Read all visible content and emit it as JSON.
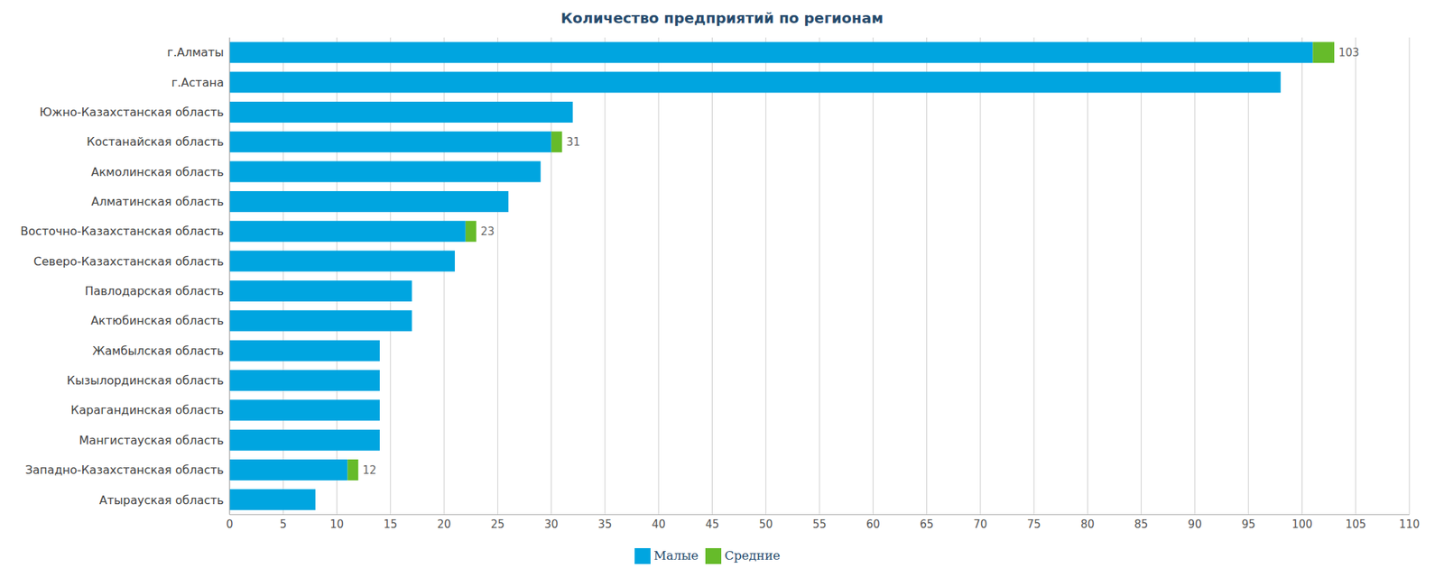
{
  "chart_data": {
    "type": "bar",
    "title": "Количество предприятий по регионам",
    "orientation": "horizontal",
    "stacked": true,
    "grid": true,
    "legend": "bottom",
    "categories": [
      "г.Алматы",
      "г.Астана",
      "Южно-Казахстанская область",
      "Костанайская область",
      "Акмолинская область",
      "Алматинская область",
      "Восточно-Казахстанская область",
      "Северо-Казахстанская область",
      "Павлодарская область",
      "Актюбинская область",
      "Жамбылская область",
      "Кызылординская область",
      "Карагандинская область",
      "Мангистауская область",
      "Западно-Казахстанская область",
      "Атырауская область"
    ],
    "series": [
      {
        "name": "Малые",
        "color": "#00a5e0",
        "values": [
          101,
          98,
          32,
          30,
          29,
          26,
          22,
          21,
          17,
          17,
          14,
          14,
          14,
          14,
          11,
          8
        ]
      },
      {
        "name": "Средние",
        "color": "#66bb2a",
        "values": [
          2,
          0,
          0,
          1,
          0,
          0,
          1,
          0,
          0,
          0,
          0,
          0,
          0,
          0,
          1,
          0
        ]
      }
    ],
    "totals": [
      103,
      98,
      32,
      31,
      29,
      26,
      23,
      21,
      17,
      17,
      14,
      14,
      14,
      14,
      12,
      8
    ],
    "xlim": [
      0,
      110
    ],
    "xticks": [
      0,
      5,
      10,
      15,
      20,
      25,
      30,
      35,
      40,
      45,
      50,
      55,
      60,
      65,
      70,
      75,
      80,
      85,
      90,
      95,
      100,
      105,
      110
    ]
  }
}
